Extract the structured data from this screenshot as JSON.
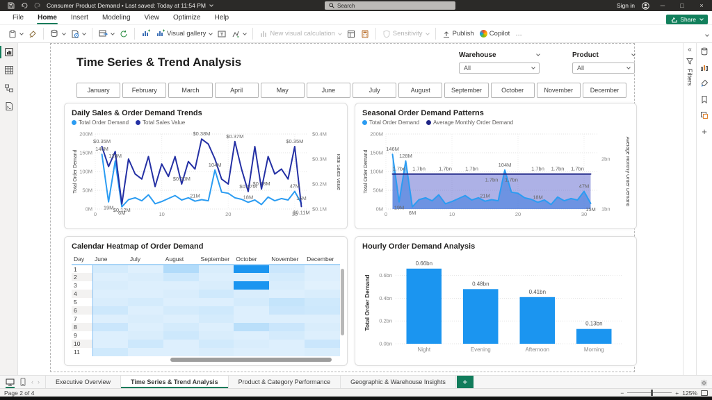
{
  "titlebar": {
    "title": "Consumer Product Demand • Last saved: Today at 11:54 PM",
    "search_placeholder": "Search",
    "sign_in": "Sign in"
  },
  "menubar": {
    "items": [
      "File",
      "Home",
      "Insert",
      "Modeling",
      "View",
      "Optimize",
      "Help"
    ],
    "active_item": "Home",
    "share_label": "Share"
  },
  "ribbon": {
    "visual_gallery_label": "Visual gallery",
    "new_visual_calculation_label": "New visual calculation",
    "sensitivity_label": "Sensitivity",
    "publish_label": "Publish",
    "copilot_label": "Copilot",
    "more_label": "…"
  },
  "filters_pane": {
    "label": "Filters"
  },
  "page": {
    "title": "Time Series & Trend Analysis",
    "slicers": [
      {
        "label": "Warehouse",
        "value": "All"
      },
      {
        "label": "Product",
        "value": "All"
      }
    ],
    "months": [
      "January",
      "February",
      "March",
      "April",
      "May",
      "June",
      "July",
      "August",
      "September",
      "October",
      "November",
      "December"
    ]
  },
  "chart_data": [
    {
      "type": "line",
      "title": "Daily Sales & Order Demand Trends",
      "legend": [
        {
          "name": "Total Order Demand",
          "color": "#2B9CF2"
        },
        {
          "name": "Total Sales Value",
          "color": "#2430A4"
        }
      ],
      "xticks": [
        0,
        10,
        20,
        30
      ],
      "left_axis": {
        "title": "Total Order Demand",
        "lim": [
          0,
          200
        ],
        "tick_values": [
          0,
          50,
          100,
          150,
          200
        ],
        "tick_labels": [
          "0M",
          "50M",
          "100M",
          "150M",
          "200M"
        ]
      },
      "right_axis": {
        "title": "Total Sales Value",
        "lim": [
          0.1,
          0.4
        ],
        "tick_values": [
          0.1,
          0.2,
          0.3,
          0.4
        ],
        "tick_labels": [
          "$0.1M",
          "$0.2M",
          "$0.3M",
          "$0.4M"
        ]
      },
      "series": [
        {
          "name": "Total Order Demand",
          "axis": "left",
          "values": [
            146,
            19,
            128,
            6,
            25,
            30,
            22,
            38,
            14,
            20,
            28,
            36,
            24,
            30,
            21,
            25,
            22,
            104,
            45,
            42,
            30,
            26,
            18,
            24,
            12,
            32,
            22,
            28,
            24,
            47,
            15
          ]
        },
        {
          "name": "Total Sales Value",
          "axis": "right",
          "values": [
            0.35,
            0.27,
            0.33,
            0.12,
            0.3,
            0.24,
            0.22,
            0.31,
            0.19,
            0.28,
            0.23,
            0.31,
            0.2,
            0.29,
            0.26,
            0.38,
            0.36,
            0.3,
            0.22,
            0.2,
            0.37,
            0.26,
            0.17,
            0.35,
            0.18,
            0.31,
            0.24,
            0.26,
            0.22,
            0.35,
            0.11
          ]
        }
      ],
      "point_labels": [
        {
          "series": 0,
          "i": 0,
          "text": "146M"
        },
        {
          "series": 0,
          "i": 1,
          "text": "19M",
          "below": true
        },
        {
          "series": 0,
          "i": 2,
          "text": "128M"
        },
        {
          "series": 0,
          "i": 3,
          "text": "6M",
          "below": true
        },
        {
          "series": 0,
          "i": 14,
          "text": "21M"
        },
        {
          "series": 0,
          "i": 17,
          "text": "104M"
        },
        {
          "series": 0,
          "i": 22,
          "text": "18M"
        },
        {
          "series": 0,
          "i": 29,
          "text": "47M"
        },
        {
          "series": 0,
          "i": 30,
          "text": "15M"
        },
        {
          "series": 1,
          "i": 0,
          "text": "$0.35M"
        },
        {
          "series": 1,
          "i": 3,
          "text": "$0.12M",
          "below": true
        },
        {
          "series": 1,
          "i": 12,
          "text": "$0.20M"
        },
        {
          "series": 1,
          "i": 15,
          "text": "$0.38M"
        },
        {
          "series": 1,
          "i": 20,
          "text": "$0.37M"
        },
        {
          "series": 1,
          "i": 22,
          "text": "$0.17M"
        },
        {
          "series": 1,
          "i": 24,
          "text": "$0.18M"
        },
        {
          "series": 1,
          "i": 29,
          "text": "$0.35M"
        },
        {
          "series": 1,
          "i": 30,
          "text": "$0.11M",
          "below": true
        }
      ]
    },
    {
      "type": "area-line",
      "title": "Seasonal Order Demand Patterns",
      "legend": [
        {
          "name": "Total Order Demand",
          "color": "#2B9CF2"
        },
        {
          "name": "Average Monthly Order Demand",
          "color": "#1F2586"
        }
      ],
      "xticks": [
        0,
        10,
        20,
        30
      ],
      "left_axis": {
        "title": "Total Order Demand",
        "lim": [
          0,
          200
        ],
        "tick_values": [
          0,
          50,
          100,
          150,
          200
        ],
        "tick_labels": [
          "0M",
          "50M",
          "100M",
          "150M",
          "200M"
        ]
      },
      "right_axis": {
        "title": "Average Monthly Order Demand",
        "lim": [
          1,
          2.5
        ],
        "tick_values": [
          1,
          2
        ],
        "tick_labels": [
          "1bn",
          "2bn"
        ]
      },
      "series": [
        {
          "name": "Total Order Demand",
          "axis": "left",
          "values": [
            146,
            19,
            128,
            6,
            25,
            30,
            22,
            38,
            14,
            20,
            28,
            36,
            24,
            30,
            21,
            25,
            22,
            104,
            45,
            42,
            30,
            26,
            18,
            24,
            12,
            32,
            22,
            28,
            24,
            47,
            15
          ]
        },
        {
          "name": "Average Monthly Order Demand",
          "axis": "right",
          "constant": 1.7
        }
      ],
      "point_labels": [
        {
          "series": 0,
          "i": 0,
          "text": "146M"
        },
        {
          "series": 0,
          "i": 1,
          "text": "19M",
          "below": true
        },
        {
          "series": 0,
          "i": 2,
          "text": "128M"
        },
        {
          "series": 0,
          "i": 3,
          "text": "6M",
          "below": true
        },
        {
          "series": 0,
          "i": 14,
          "text": "21M"
        },
        {
          "series": 0,
          "i": 17,
          "text": "104M"
        },
        {
          "series": 0,
          "i": 22,
          "text": "18M"
        },
        {
          "series": 0,
          "i": 29,
          "text": "47M"
        },
        {
          "series": 0,
          "i": 30,
          "text": "15M",
          "below": true
        },
        {
          "series": 1,
          "i": 1,
          "text": "1.7bn"
        },
        {
          "series": 1,
          "i": 4,
          "text": "1.7bn"
        },
        {
          "series": 1,
          "i": 8,
          "text": "1.7bn"
        },
        {
          "series": 1,
          "i": 12,
          "text": "1.7bn"
        },
        {
          "series": 1,
          "i": 15,
          "text": "1.7bn",
          "below": true
        },
        {
          "series": 1,
          "i": 18,
          "text": "1.7bn",
          "below": true
        },
        {
          "series": 1,
          "i": 22,
          "text": "1.7bn"
        },
        {
          "series": 1,
          "i": 25,
          "text": "1.7bn"
        },
        {
          "series": 1,
          "i": 28,
          "text": "1.7bn"
        }
      ]
    },
    {
      "type": "heatmap",
      "title": "Calendar Heatmap of Order Demand",
      "row_header": "Day",
      "columns": [
        "June",
        "July",
        "August",
        "September",
        "October",
        "November",
        "December"
      ],
      "rows": [
        "1",
        "2",
        "3",
        "4",
        "5",
        "6",
        "7",
        "8",
        "9",
        "10",
        "11"
      ],
      "matrix": [
        [
          0.12,
          0.06,
          0.28,
          0.1,
          1.0,
          0.16,
          0.08
        ],
        [
          0.08,
          0.1,
          0.15,
          0.08,
          0.08,
          0.12,
          0.08
        ],
        [
          0.1,
          0.08,
          0.08,
          0.1,
          1.0,
          0.1,
          0.05
        ],
        [
          0.08,
          0.08,
          0.1,
          0.14,
          0.1,
          0.08,
          0.1
        ],
        [
          0.1,
          0.12,
          0.08,
          0.08,
          0.12,
          0.2,
          0.14
        ],
        [
          0.15,
          0.08,
          0.12,
          0.14,
          0.08,
          0.16,
          0.15
        ],
        [
          0.08,
          0.1,
          0.08,
          0.12,
          0.08,
          0.08,
          0.08
        ],
        [
          0.16,
          0.08,
          0.12,
          0.08,
          0.24,
          0.16,
          0.1
        ],
        [
          0.08,
          0.1,
          0.15,
          0.1,
          0.08,
          0.12,
          0.08
        ],
        [
          0.08,
          0.15,
          0.08,
          0.13,
          0.1,
          0.08,
          0.16
        ],
        [
          0.14,
          0.08,
          0.08,
          0.1,
          0.08,
          0.08,
          0.1
        ]
      ]
    },
    {
      "type": "bar",
      "title": "Hourly Order Demand Analysis",
      "categories": [
        "Night",
        "Evening",
        "Afternoon",
        "Morning"
      ],
      "values": [
        0.66,
        0.48,
        0.41,
        0.13
      ],
      "value_labels": [
        "0.66bn",
        "0.48bn",
        "0.41bn",
        "0.13bn"
      ],
      "bar_color": "#1B95F0",
      "ylabel": "Total Order Demand",
      "ylim": [
        0,
        0.72
      ],
      "ytick_values": [
        0,
        0.2,
        0.4,
        0.6
      ],
      "ytick_labels": [
        "0.0bn",
        "0.2bn",
        "0.4bn",
        "0.6bn"
      ]
    }
  ],
  "tabbar": {
    "tabs": [
      "Executive Overview",
      "Time Series & Trend Analysis",
      "Product & Category Performance",
      "Geographic & Warehouse Insights"
    ],
    "active_tab": "Time Series & Trend Analysis",
    "add_label": "+"
  },
  "statusbar": {
    "page_indicator": "Page 2 of 4",
    "zoom_level": "125%"
  }
}
